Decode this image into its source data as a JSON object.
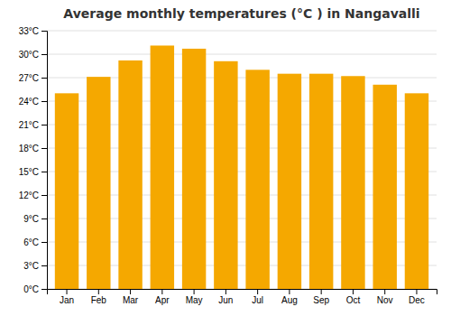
{
  "chart_data": {
    "type": "bar",
    "title": "Average monthly temperatures (°C ) in Nangavalli",
    "categories": [
      "Jan",
      "Feb",
      "Mar",
      "Apr",
      "May",
      "Jun",
      "Jul",
      "Aug",
      "Sep",
      "Oct",
      "Nov",
      "Dec"
    ],
    "values": [
      25.0,
      27.1,
      29.2,
      31.1,
      30.7,
      29.1,
      28.0,
      27.5,
      27.5,
      27.2,
      26.1,
      25.0
    ],
    "color": "#F5A800",
    "ylim": [
      0,
      33
    ],
    "yticks": [
      {
        "value": 0,
        "label": "0°C"
      },
      {
        "value": 3,
        "label": "3°C"
      },
      {
        "value": 6,
        "label": "6°C"
      },
      {
        "value": 9,
        "label": "9°C"
      },
      {
        "value": 12,
        "label": "12°C"
      },
      {
        "value": 15,
        "label": "15°C"
      },
      {
        "value": 18,
        "label": "18°C"
      },
      {
        "value": 21,
        "label": "21°C"
      },
      {
        "value": 24,
        "label": "24°C"
      },
      {
        "value": 27,
        "label": "27°C"
      },
      {
        "value": 30,
        "label": "30°C"
      },
      {
        "value": 33,
        "label": "33°C"
      }
    ],
    "grid": true
  }
}
